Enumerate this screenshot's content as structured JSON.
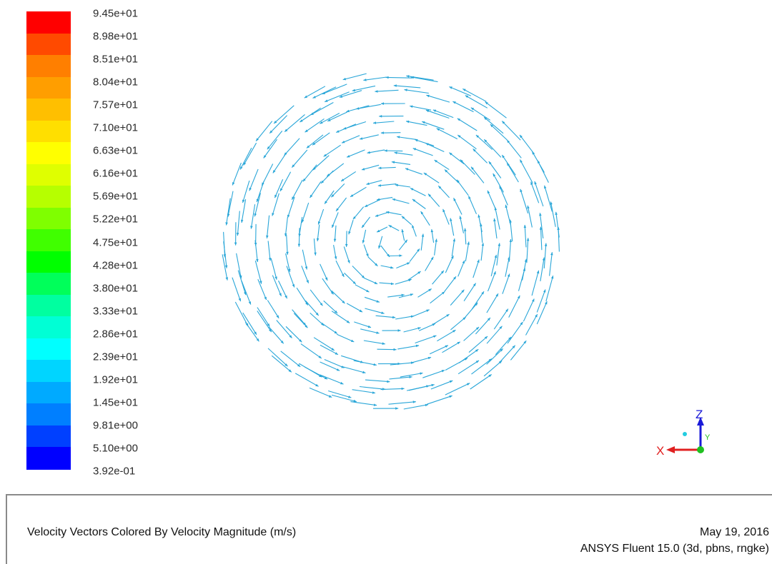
{
  "legend": {
    "labels": [
      "9.45e+01",
      "8.98e+01",
      "8.51e+01",
      "8.04e+01",
      "7.57e+01",
      "7.10e+01",
      "6.63e+01",
      "6.16e+01",
      "5.69e+01",
      "5.22e+01",
      "4.75e+01",
      "4.28e+01",
      "3.80e+01",
      "3.33e+01",
      "2.86e+01",
      "2.39e+01",
      "1.92e+01",
      "1.45e+01",
      "9.81e+00",
      "5.10e+00",
      "3.92e-01"
    ],
    "colors": [
      "#ff0000",
      "#ff4a00",
      "#ff7f00",
      "#ff9e00",
      "#ffbf00",
      "#ffdf00",
      "#ffff00",
      "#dfff00",
      "#b6ff00",
      "#7fff00",
      "#40ff00",
      "#00ff00",
      "#00ff5a",
      "#00ffa0",
      "#00ffd5",
      "#00ffff",
      "#00d5ff",
      "#00aaff",
      "#007fff",
      "#0040ff",
      "#0000ff"
    ]
  },
  "plot": {
    "vector_color": "#29a6d8",
    "rotation": "counter-clockwise"
  },
  "axes": {
    "x_label": "X",
    "z_label": "Z",
    "y_label": "Y",
    "x_color": "#e02020",
    "z_color": "#1a1ad8",
    "origin_color": "#20c020",
    "y_marker_color": "#22cce0"
  },
  "footer": {
    "title": "Velocity Vectors Colored By Velocity Magnitude (m/s)",
    "date": "May 19, 2016",
    "software": "ANSYS Fluent 15.0 (3d, pbns, rngke)"
  }
}
